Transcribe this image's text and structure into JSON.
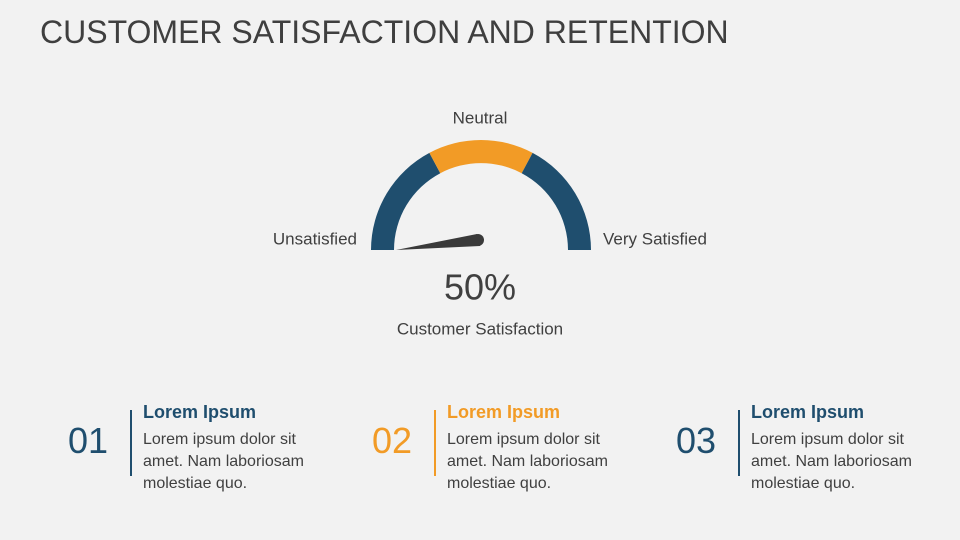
{
  "header": {
    "title": "CUSTOMER SATISFACTION AND RETENTION"
  },
  "gauge": {
    "left_label": "Unsatisfied",
    "top_label": "Neutral",
    "right_label": "Very Satisfied",
    "value_text": "50%",
    "caption": "Customer Satisfaction"
  },
  "items": [
    {
      "number": "01",
      "heading": "Lorem Ipsum",
      "body": "Lorem ipsum dolor sit amet. Nam laboriosam molestiae quo."
    },
    {
      "number": "02",
      "heading": "Lorem Ipsum",
      "body": "Lorem ipsum dolor sit amet. Nam laboriosam molestiae quo."
    },
    {
      "number": "03",
      "heading": "Lorem Ipsum",
      "body": "Lorem ipsum dolor sit amet. Nam laboriosam molestiae quo."
    }
  ]
}
